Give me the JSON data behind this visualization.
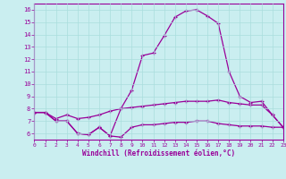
{
  "hours": [
    0,
    1,
    2,
    3,
    4,
    5,
    6,
    7,
    8,
    9,
    10,
    11,
    12,
    13,
    14,
    15,
    16,
    17,
    18,
    19,
    20,
    21,
    22,
    23
  ],
  "windchill_top": [
    7.7,
    7.7,
    7.0,
    7.0,
    6.0,
    5.9,
    6.5,
    5.8,
    8.0,
    9.5,
    12.3,
    12.5,
    13.9,
    15.4,
    15.9,
    16.0,
    15.5,
    14.9,
    11.0,
    9.0,
    8.5,
    8.6,
    7.5,
    6.5
  ],
  "temperature_mid": [
    7.7,
    7.7,
    7.2,
    7.5,
    7.2,
    7.3,
    7.5,
    7.8,
    8.0,
    8.1,
    8.2,
    8.3,
    8.4,
    8.5,
    8.6,
    8.6,
    8.6,
    8.7,
    8.5,
    8.4,
    8.3,
    8.3,
    7.5,
    6.5
  ],
  "lower_line": [
    7.7,
    7.7,
    7.0,
    7.0,
    6.0,
    5.9,
    6.5,
    5.8,
    5.7,
    6.5,
    6.7,
    6.7,
    6.8,
    6.9,
    6.9,
    7.0,
    7.0,
    6.8,
    6.7,
    6.6,
    6.6,
    6.6,
    6.5,
    6.5
  ],
  "bg_color": "#caeef0",
  "grid_color": "#aadddd",
  "line_color": "#990099",
  "xlabel": "Windchill (Refroidissement éolien,°C)",
  "ylim": [
    5.5,
    16.5
  ],
  "xlim": [
    0,
    23
  ],
  "yticks": [
    6,
    7,
    8,
    9,
    10,
    11,
    12,
    13,
    14,
    15,
    16
  ],
  "xticks": [
    0,
    1,
    2,
    3,
    4,
    5,
    6,
    7,
    8,
    9,
    10,
    11,
    12,
    13,
    14,
    15,
    16,
    17,
    18,
    19,
    20,
    21,
    22,
    23
  ]
}
